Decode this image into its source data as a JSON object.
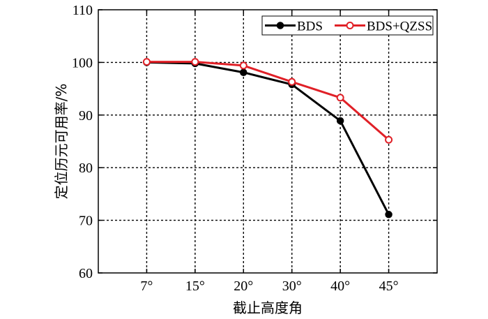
{
  "chart_data": {
    "type": "line",
    "categories": [
      "7°",
      "15°",
      "20°",
      "30°",
      "40°",
      "45°"
    ],
    "series": [
      {
        "name": "BDS",
        "values": [
          100,
          99.8,
          98.1,
          95.8,
          88.9,
          71.1
        ],
        "color": "#000000",
        "marker": "filled-circle"
      },
      {
        "name": "BDS+QZSS",
        "values": [
          100.1,
          100.1,
          99.4,
          96.3,
          93.3,
          85.3
        ],
        "color": "#e02027",
        "marker": "hollow-circle"
      }
    ],
    "xlabel": "截止高度角",
    "ylabel": "定位历元可用率/%",
    "ylim": [
      60,
      110
    ],
    "yticks": [
      60,
      70,
      80,
      90,
      100,
      110
    ],
    "grid": true,
    "legend_position": "top-right"
  }
}
